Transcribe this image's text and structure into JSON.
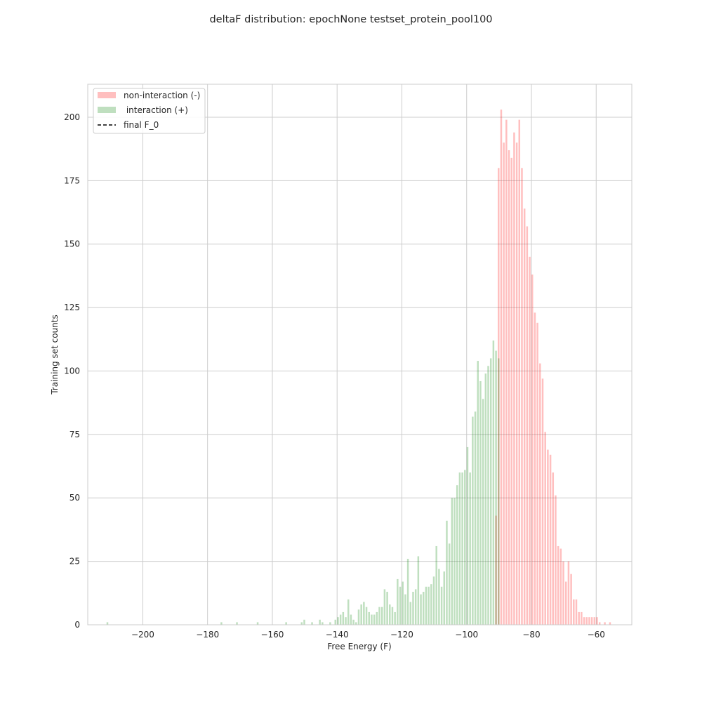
{
  "chart_data": {
    "type": "histogram",
    "title": "deltaF distribution: epochNone testset_protein_pool100",
    "xlabel": "Free Energy (F)",
    "ylabel": "Training set counts",
    "xlim": [
      -217,
      -49
    ],
    "ylim": [
      0,
      213
    ],
    "xticks": [
      -200,
      -180,
      -160,
      -140,
      -120,
      -100,
      -80,
      -60
    ],
    "xtick_labels": [
      "−200",
      "−180",
      "−160",
      "−140",
      "−120",
      "−100",
      "−80",
      "−60"
    ],
    "yticks": [
      0,
      25,
      50,
      75,
      100,
      125,
      150,
      175,
      200
    ],
    "grid": true,
    "bin_width": 0.8,
    "legend": {
      "position": "upper-left",
      "entries": [
        {
          "label": "non-interaction (-)",
          "kind": "patch",
          "color": "#ffbfbf"
        },
        {
          "label": " interaction (+)",
          "kind": "patch",
          "color": "#bfdfbf"
        },
        {
          "label": "final F_0",
          "kind": "dashed-line",
          "color": "#000000"
        }
      ]
    },
    "final_F0": -90.4,
    "colors": {
      "negative": "#ff0000",
      "positive": "#008000",
      "alpha": 0.25
    },
    "series": [
      {
        "name": "non-interaction (-)",
        "color": "#ff0000",
        "bins": [
          [
            -91.2,
            43
          ],
          [
            -90.4,
            180
          ],
          [
            -89.6,
            203
          ],
          [
            -88.8,
            190
          ],
          [
            -88.0,
            199
          ],
          [
            -87.2,
            187
          ],
          [
            -86.4,
            184
          ],
          [
            -85.6,
            194
          ],
          [
            -84.8,
            190
          ],
          [
            -84.0,
            199
          ],
          [
            -83.2,
            180
          ],
          [
            -82.4,
            164
          ],
          [
            -81.6,
            157
          ],
          [
            -80.8,
            145
          ],
          [
            -80.0,
            138
          ],
          [
            -79.2,
            123
          ],
          [
            -78.4,
            119
          ],
          [
            -77.6,
            103
          ],
          [
            -76.8,
            97
          ],
          [
            -76.0,
            76
          ],
          [
            -75.2,
            69
          ],
          [
            -74.4,
            67
          ],
          [
            -73.6,
            60
          ],
          [
            -72.8,
            51
          ],
          [
            -72.0,
            31
          ],
          [
            -71.2,
            30
          ],
          [
            -70.4,
            25
          ],
          [
            -69.6,
            17
          ],
          [
            -68.8,
            25
          ],
          [
            -68.0,
            20
          ],
          [
            -67.2,
            10
          ],
          [
            -66.4,
            10
          ],
          [
            -65.6,
            5
          ],
          [
            -64.8,
            5
          ],
          [
            -64.0,
            3
          ],
          [
            -63.2,
            3
          ],
          [
            -62.4,
            3
          ],
          [
            -61.6,
            3
          ],
          [
            -60.8,
            3
          ],
          [
            -60.0,
            3
          ],
          [
            -59.2,
            1
          ],
          [
            -57.6,
            1
          ],
          [
            -56.0,
            1
          ]
        ]
      },
      {
        "name": " interaction (+)",
        "color": "#008000",
        "bins": [
          [
            -211.2,
            1
          ],
          [
            -176.0,
            1
          ],
          [
            -171.2,
            1
          ],
          [
            -164.8,
            1
          ],
          [
            -156.0,
            1
          ],
          [
            -151.2,
            1
          ],
          [
            -150.4,
            2
          ],
          [
            -148.0,
            1
          ],
          [
            -145.6,
            2
          ],
          [
            -144.8,
            1
          ],
          [
            -142.4,
            1
          ],
          [
            -140.8,
            2
          ],
          [
            -140.0,
            3
          ],
          [
            -139.2,
            4
          ],
          [
            -138.4,
            5
          ],
          [
            -137.6,
            3
          ],
          [
            -136.8,
            10
          ],
          [
            -136.0,
            4
          ],
          [
            -135.2,
            2
          ],
          [
            -134.4,
            1
          ],
          [
            -133.6,
            6
          ],
          [
            -132.8,
            8
          ],
          [
            -132.0,
            9
          ],
          [
            -131.2,
            7
          ],
          [
            -130.4,
            5
          ],
          [
            -129.6,
            4
          ],
          [
            -128.8,
            4
          ],
          [
            -128.0,
            5
          ],
          [
            -127.2,
            7
          ],
          [
            -126.4,
            7
          ],
          [
            -125.6,
            14
          ],
          [
            -124.8,
            13
          ],
          [
            -124.0,
            8
          ],
          [
            -123.2,
            7
          ],
          [
            -122.4,
            5
          ],
          [
            -121.6,
            18
          ],
          [
            -120.8,
            15
          ],
          [
            -120.0,
            17
          ],
          [
            -119.2,
            12
          ],
          [
            -118.4,
            26
          ],
          [
            -117.6,
            9
          ],
          [
            -116.8,
            13
          ],
          [
            -116.0,
            14
          ],
          [
            -115.2,
            27
          ],
          [
            -114.4,
            12
          ],
          [
            -113.6,
            13
          ],
          [
            -112.8,
            15
          ],
          [
            -112.0,
            15
          ],
          [
            -111.2,
            16
          ],
          [
            -110.4,
            19
          ],
          [
            -109.6,
            31
          ],
          [
            -108.8,
            22
          ],
          [
            -108.0,
            15
          ],
          [
            -107.2,
            21
          ],
          [
            -106.4,
            41
          ],
          [
            -105.6,
            32
          ],
          [
            -104.8,
            50
          ],
          [
            -104.0,
            50
          ],
          [
            -103.2,
            55
          ],
          [
            -102.4,
            60
          ],
          [
            -101.6,
            60
          ],
          [
            -100.8,
            61
          ],
          [
            -100.0,
            70
          ],
          [
            -99.2,
            60
          ],
          [
            -98.4,
            82
          ],
          [
            -97.6,
            84
          ],
          [
            -96.8,
            104
          ],
          [
            -96.0,
            96
          ],
          [
            -95.2,
            89
          ],
          [
            -94.4,
            99
          ],
          [
            -93.6,
            102
          ],
          [
            -92.8,
            105
          ],
          [
            -92.0,
            112
          ],
          [
            -91.2,
            108
          ],
          [
            -90.4,
            105
          ]
        ]
      }
    ]
  }
}
